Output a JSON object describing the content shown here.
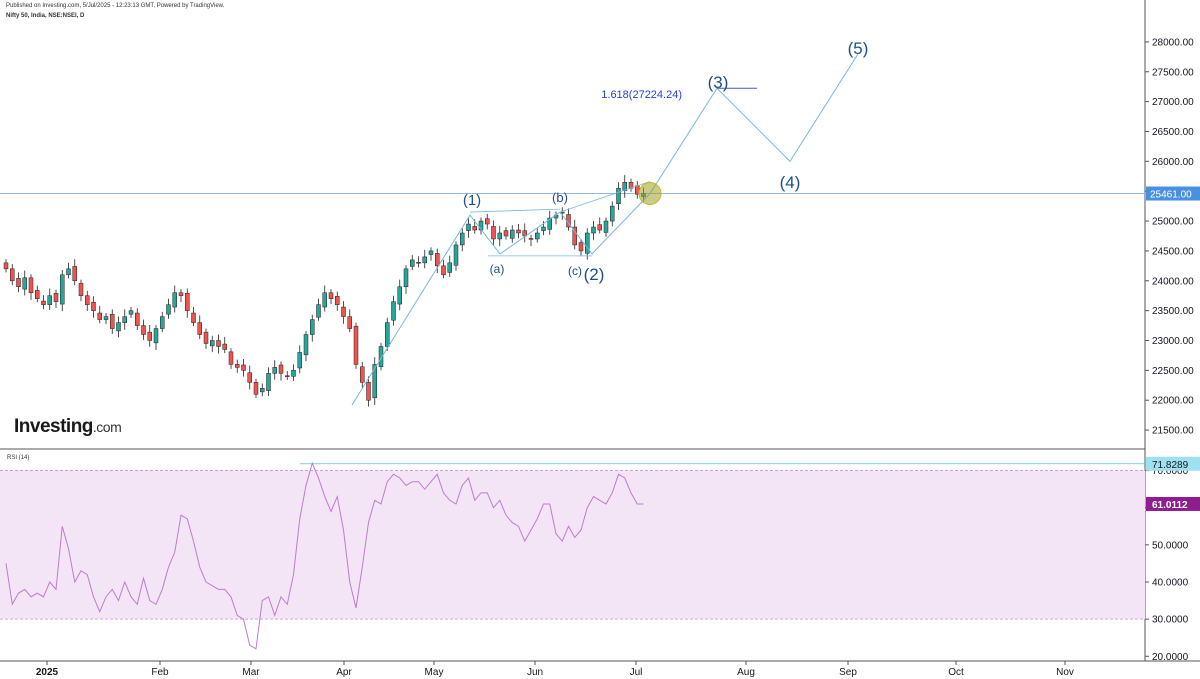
{
  "header": {
    "published": "Published on Investing.com, 5/Jul/2025 - 12:23:13 GMT, Powered by TradingView.",
    "symbol": "Nifty 50, India, NSE:NSEI, D"
  },
  "logo": {
    "brand": "Investing",
    "domain": ".com"
  },
  "colors": {
    "up": "#26a69a",
    "down": "#ef5350",
    "rsi": "#c07ad0",
    "rsi_band": "#f3e5f5",
    "wave": "#78b8d8",
    "wave_text": "#1f4f82",
    "fib_text": "#2a3fd6"
  },
  "chart_data": [
    {
      "type": "candlestick",
      "title": "Nifty 50, India, NSE:NSEI, D",
      "x_labels": [
        "2025",
        "Feb",
        "Mar",
        "Apr",
        "May",
        "Jun",
        "Jul",
        "Aug",
        "Sep",
        "Oct",
        "Nov"
      ],
      "y_ticks": [
        21500,
        22000,
        22500,
        23000,
        23500,
        24000,
        24500,
        25000,
        25500,
        26000,
        26500,
        27000,
        27500,
        28000
      ],
      "y_tick_labels": [
        "21500.00",
        "22000.00",
        "22500.00",
        "23000.00",
        "23500.00",
        "24000.00",
        "24500.00",
        "25000.00",
        "25500.00",
        "26000.00",
        "26500.00",
        "27000.00",
        "27500.00",
        "28000.00"
      ],
      "ylim": [
        21200,
        28400
      ],
      "last_price": 25461,
      "last_price_label": "25461.00",
      "close_series_approx": [
        24200,
        24000,
        23900,
        24050,
        23800,
        23700,
        23600,
        23750,
        23650,
        24100,
        24200,
        24000,
        23750,
        23600,
        23500,
        23350,
        23400,
        23200,
        23300,
        23400,
        23500,
        23250,
        23100,
        23000,
        23200,
        23400,
        23600,
        23800,
        23750,
        23500,
        23300,
        23100,
        22950,
        23000,
        22900,
        22850,
        22600,
        22550,
        22500,
        22300,
        22100,
        22200,
        22450,
        22550,
        22450,
        22400,
        22500,
        22800,
        23100,
        23350,
        23600,
        23800,
        23700,
        23600,
        23400,
        23200,
        22600,
        22300,
        22000,
        22600,
        22900,
        23300,
        23650,
        23900,
        24200,
        24350,
        24300,
        24400,
        24500,
        24250,
        24100,
        24300,
        24600,
        24800,
        24950,
        24850,
        25000,
        24950,
        24700,
        24800,
        24750,
        24850,
        24800,
        24750,
        24700,
        24800,
        24900,
        25050,
        25100,
        25150,
        24900,
        24600,
        24500,
        24800,
        24900,
        24850,
        25000,
        25250,
        25550,
        25650,
        25550,
        25450,
        25461
      ],
      "waves": [
        {
          "label": "(1)",
          "value": 25100
        },
        {
          "label": "(a)",
          "value": 24450
        },
        {
          "label": "(b)",
          "value": 25150
        },
        {
          "label": "(c)",
          "value": 24450
        },
        {
          "label": "(2)",
          "value": 24450
        },
        {
          "label": "(3)",
          "value": 27224
        },
        {
          "label": "(4)",
          "value": 26000
        },
        {
          "label": "(5)",
          "value": 27800
        }
      ],
      "fib_label": "1.618(27224.24)"
    },
    {
      "type": "line",
      "title": "RSI (14)",
      "y_tick_labels": [
        "20.0000",
        "30.0000",
        "40.0000",
        "50.0000",
        "60.0000",
        "70.0000"
      ],
      "y_ticks": [
        20,
        30,
        40,
        50,
        60,
        70
      ],
      "ylim": [
        19,
        75
      ],
      "band": [
        30,
        70
      ],
      "max_value": 71.8289,
      "max_label": "71.8289",
      "current_value": 61.0112,
      "current_label": "61.0112",
      "values": [
        45,
        34,
        37,
        38,
        36,
        37,
        36,
        40,
        38,
        55,
        49,
        40,
        43,
        42,
        36,
        32,
        36,
        38,
        35,
        40,
        36,
        34,
        41,
        35,
        34,
        38,
        44,
        48,
        58,
        57,
        51,
        44,
        40,
        39,
        38,
        38,
        36,
        31,
        30,
        23,
        22,
        35,
        36,
        31,
        36,
        34,
        42,
        57,
        66,
        72,
        68,
        63,
        59,
        63,
        54,
        40,
        33,
        44,
        56,
        62,
        61,
        67,
        69,
        68,
        66,
        67,
        67,
        65,
        67,
        69,
        64,
        62,
        61,
        66,
        68,
        62,
        64,
        64,
        60,
        62,
        58,
        56,
        55,
        51,
        54,
        57,
        61,
        61,
        53,
        51,
        55,
        52,
        54,
        60,
        63,
        62,
        61,
        64,
        69,
        68,
        64,
        61,
        61
      ],
      "current_value_note": "61.0112"
    }
  ]
}
